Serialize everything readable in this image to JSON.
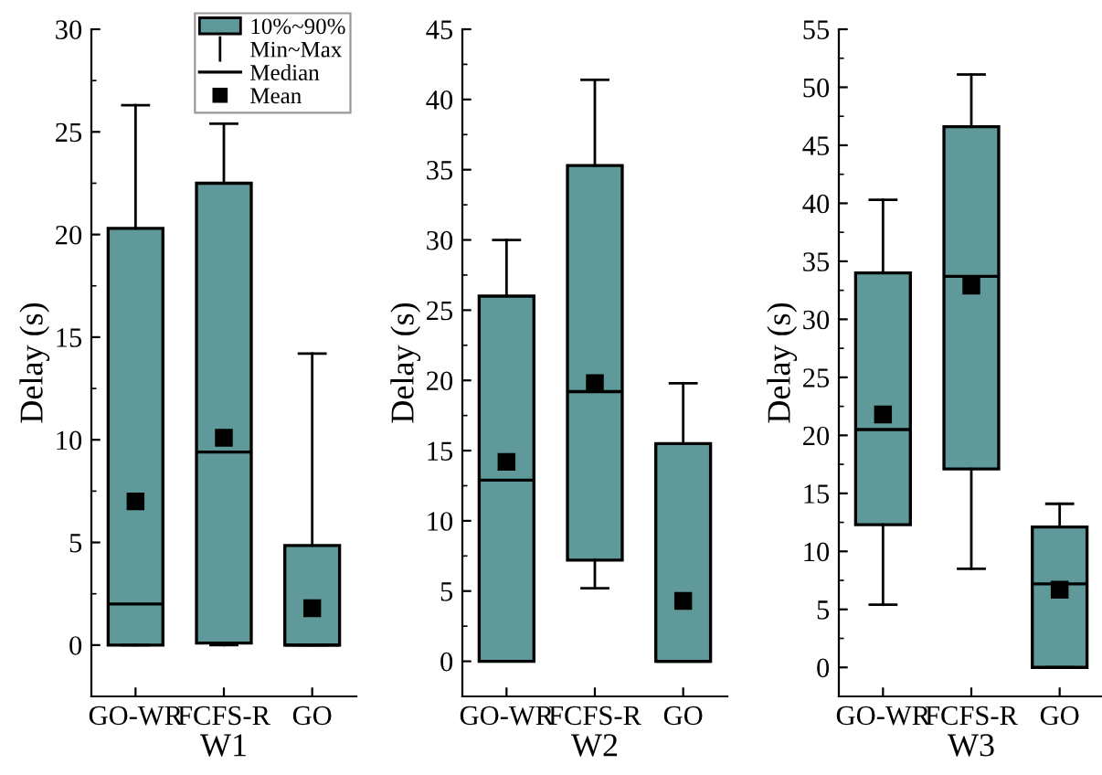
{
  "chart_data": [
    {
      "type": "box",
      "categories": [
        "GO-WR",
        "FCFS-R",
        "GO"
      ],
      "xlabel": "W1",
      "ylabel": "Delay (s)",
      "ylim": [
        -2.5,
        30
      ],
      "yticks": [
        0,
        5,
        10,
        15,
        20,
        25,
        30
      ],
      "annotations": [
        "10%~90%",
        "Min~Max",
        "Median",
        "Mean"
      ],
      "series": [
        {
          "color": "#5f9999",
          "boxes": [
            {
              "low": 0,
              "q1": 0,
              "median": 2.0,
              "q3": 20.3,
              "high": 26.3,
              "mean": 7.0
            },
            {
              "low": 0,
              "q1": 0.1,
              "median": 9.4,
              "q3": 22.5,
              "high": 25.4,
              "mean": 10.1
            },
            {
              "low": 0,
              "q1": 0,
              "median": 0,
              "q3": 4.85,
              "high": 14.2,
              "mean": 1.8
            }
          ]
        }
      ]
    },
    {
      "type": "box",
      "categories": [
        "GO-WR",
        "FCFS-R",
        "GO"
      ],
      "xlabel": "W2",
      "ylabel": "Delay (s)",
      "ylim": [
        -2.5,
        45
      ],
      "yticks": [
        0,
        5,
        10,
        15,
        20,
        25,
        30,
        35,
        40,
        45
      ],
      "series": [
        {
          "color": "#5f9999",
          "boxes": [
            {
              "low": 0,
              "q1": 0,
              "median": 12.9,
              "q3": 26.0,
              "high": 30.0,
              "mean": 14.2
            },
            {
              "low": 5.2,
              "q1": 7.2,
              "median": 19.2,
              "q3": 35.3,
              "high": 41.4,
              "mean": 19.8
            },
            {
              "low": 0,
              "q1": 0,
              "median": 0,
              "q3": 15.5,
              "high": 19.8,
              "mean": 4.3
            }
          ]
        }
      ]
    },
    {
      "type": "box",
      "categories": [
        "GO-WR",
        "FCFS-R",
        "GO"
      ],
      "xlabel": "W3",
      "ylabel": "Delay (s)",
      "ylim": [
        -2.5,
        55
      ],
      "yticks": [
        0,
        5,
        10,
        15,
        20,
        25,
        30,
        35,
        40,
        45,
        50,
        55
      ],
      "series": [
        {
          "color": "#5f9999",
          "boxes": [
            {
              "low": 5.4,
              "q1": 12.3,
              "median": 20.5,
              "q3": 34.0,
              "high": 40.3,
              "mean": 21.8
            },
            {
              "low": 8.5,
              "q1": 17.1,
              "median": 33.7,
              "q3": 46.6,
              "high": 51.1,
              "mean": 32.9
            },
            {
              "low": 0,
              "q1": 0,
              "median": 7.2,
              "q3": 12.1,
              "high": 14.1,
              "mean": 6.7
            }
          ]
        }
      ]
    }
  ]
}
